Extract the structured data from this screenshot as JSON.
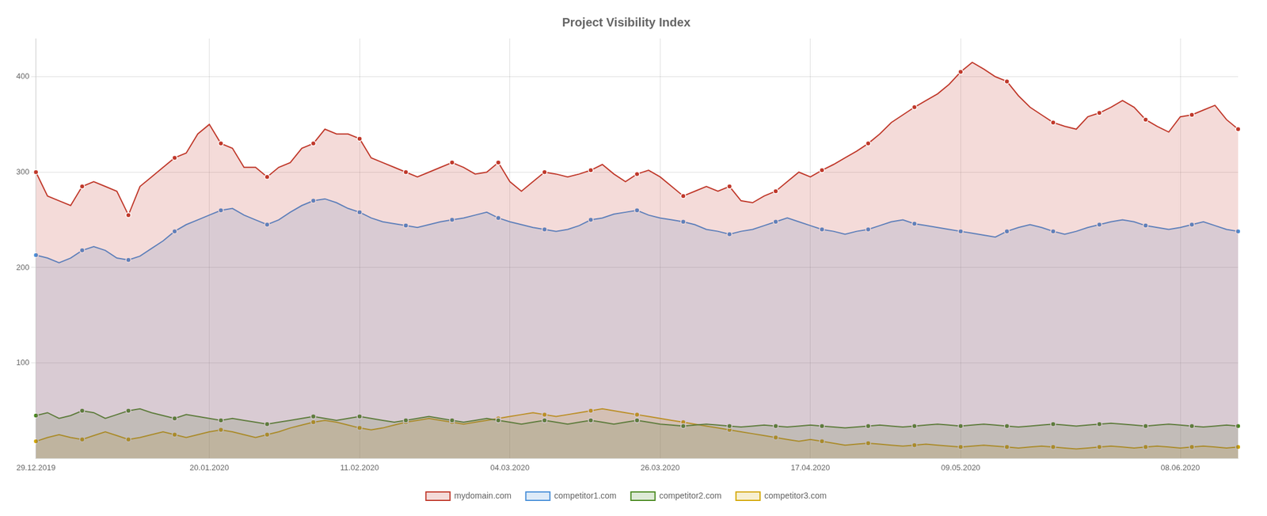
{
  "chart_data": {
    "type": "area",
    "title": "Project Visibility Index",
    "categories": [
      "29.12.2019",
      null,
      null,
      null,
      null,
      null,
      null,
      null,
      null,
      null,
      null,
      null,
      null,
      null,
      null,
      "20.01.2020",
      null,
      null,
      null,
      null,
      null,
      null,
      null,
      null,
      null,
      null,
      null,
      null,
      "11.02.2020",
      null,
      null,
      null,
      null,
      null,
      null,
      null,
      null,
      null,
      null,
      null,
      null,
      "04.03.2020",
      null,
      null,
      null,
      null,
      null,
      null,
      null,
      null,
      null,
      null,
      null,
      null,
      "26.03.2020",
      null,
      null,
      null,
      null,
      null,
      null,
      null,
      null,
      null,
      null,
      null,
      null,
      "17.04.2020",
      null,
      null,
      null,
      null,
      null,
      null,
      null,
      null,
      null,
      null,
      null,
      null,
      "09.05.2020",
      null,
      null,
      null,
      null,
      null,
      null,
      null,
      null,
      null,
      null,
      null,
      null,
      null,
      null,
      null,
      null,
      null,
      null,
      "08.06.2020",
      null,
      null,
      null,
      null,
      null
    ],
    "series": [
      {
        "name": "mydomain.com",
        "color": "#c0392b",
        "values": [
          300,
          275,
          270,
          265,
          285,
          290,
          285,
          280,
          255,
          285,
          295,
          305,
          315,
          320,
          340,
          350,
          330,
          325,
          305,
          305,
          295,
          305,
          310,
          325,
          330,
          345,
          340,
          340,
          335,
          315,
          310,
          305,
          300,
          295,
          300,
          305,
          310,
          305,
          298,
          300,
          310,
          290,
          280,
          290,
          300,
          298,
          295,
          298,
          302,
          308,
          298,
          290,
          298,
          302,
          295,
          285,
          275,
          280,
          285,
          280,
          285,
          270,
          268,
          275,
          280,
          290,
          300,
          295,
          302,
          308,
          315,
          322,
          330,
          340,
          352,
          360,
          368,
          375,
          382,
          392,
          405,
          415,
          408,
          400,
          395,
          380,
          368,
          360,
          352,
          348,
          345,
          358,
          362,
          368,
          375,
          368,
          355,
          348,
          342,
          358,
          360,
          365,
          370,
          355,
          345
        ]
      },
      {
        "name": "competitor1.com",
        "color": "#4a90d9",
        "values": [
          213,
          210,
          205,
          210,
          218,
          222,
          218,
          210,
          208,
          212,
          220,
          228,
          238,
          245,
          250,
          255,
          260,
          262,
          255,
          250,
          245,
          250,
          258,
          265,
          270,
          272,
          268,
          262,
          258,
          252,
          248,
          246,
          244,
          242,
          245,
          248,
          250,
          252,
          255,
          258,
          252,
          248,
          245,
          242,
          240,
          238,
          240,
          244,
          250,
          252,
          256,
          258,
          260,
          255,
          252,
          250,
          248,
          245,
          240,
          238,
          235,
          238,
          240,
          244,
          248,
          252,
          248,
          244,
          240,
          238,
          235,
          238,
          240,
          244,
          248,
          250,
          246,
          244,
          242,
          240,
          238,
          236,
          234,
          232,
          238,
          242,
          245,
          242,
          238,
          235,
          238,
          242,
          245,
          248,
          250,
          248,
          244,
          242,
          240,
          242,
          245,
          248,
          244,
          240,
          238
        ]
      },
      {
        "name": "competitor2.com",
        "color": "#4a8a20",
        "values": [
          45,
          48,
          42,
          45,
          50,
          48,
          42,
          46,
          50,
          52,
          48,
          45,
          42,
          46,
          44,
          42,
          40,
          42,
          40,
          38,
          36,
          38,
          40,
          42,
          44,
          42,
          40,
          42,
          44,
          42,
          40,
          38,
          40,
          42,
          44,
          42,
          40,
          38,
          40,
          42,
          40,
          38,
          36,
          38,
          40,
          38,
          36,
          38,
          40,
          38,
          36,
          38,
          40,
          38,
          36,
          35,
          34,
          35,
          36,
          35,
          34,
          33,
          34,
          35,
          34,
          33,
          34,
          35,
          34,
          33,
          32,
          33,
          34,
          35,
          34,
          33,
          34,
          35,
          36,
          35,
          34,
          35,
          36,
          35,
          34,
          33,
          34,
          35,
          36,
          35,
          34,
          35,
          36,
          37,
          36,
          35,
          34,
          35,
          36,
          35,
          34,
          33,
          34,
          35,
          34
        ]
      },
      {
        "name": "competitor3.com",
        "color": "#d4a800",
        "values": [
          18,
          22,
          25,
          22,
          20,
          24,
          28,
          24,
          20,
          22,
          25,
          28,
          25,
          22,
          25,
          28,
          30,
          28,
          25,
          22,
          25,
          28,
          32,
          35,
          38,
          40,
          38,
          35,
          32,
          30,
          32,
          35,
          38,
          40,
          42,
          40,
          38,
          36,
          38,
          40,
          42,
          44,
          46,
          48,
          46,
          44,
          46,
          48,
          50,
          52,
          50,
          48,
          46,
          44,
          42,
          40,
          38,
          36,
          34,
          32,
          30,
          28,
          26,
          24,
          22,
          20,
          18,
          20,
          18,
          16,
          14,
          15,
          16,
          15,
          14,
          13,
          14,
          15,
          14,
          13,
          12,
          13,
          14,
          13,
          12,
          11,
          12,
          13,
          12,
          11,
          10,
          11,
          12,
          13,
          12,
          11,
          12,
          13,
          12,
          11,
          12,
          13,
          12,
          11,
          12
        ]
      }
    ],
    "ylim": [
      0,
      440
    ],
    "yticks": [
      100,
      200,
      300,
      400
    ],
    "grid": true,
    "legend": "bottom",
    "marker": "circle"
  }
}
